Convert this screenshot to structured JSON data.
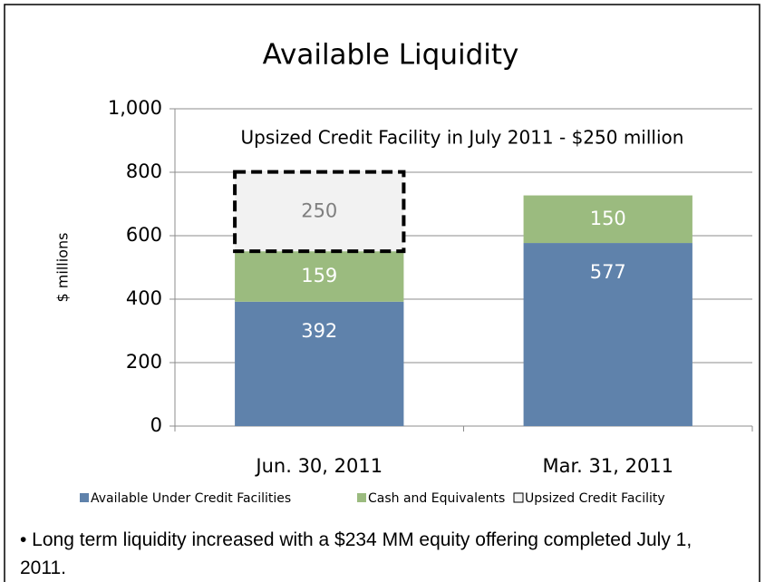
{
  "chart_data": {
    "type": "stacked_bar",
    "title": "Available Liquidity",
    "y_label": "$ millions",
    "annotation": "Upsized Credit Facility in July 2011 - $250 million",
    "categories": [
      "Jun. 30, 2011",
      "Mar. 31, 2011"
    ],
    "series": [
      {
        "name": "Available Under Credit Facilities",
        "color": "#5f82ab",
        "values": [
          392,
          577
        ]
      },
      {
        "name": "Cash and Equivalents",
        "color": "#9bbb7f",
        "values": [
          159,
          150
        ]
      },
      {
        "name": "Upsized Credit Facility",
        "color": "#f2f2f2",
        "values": [
          250,
          null
        ]
      }
    ],
    "ylim": [
      0,
      1000
    ],
    "yticks": [
      0,
      200,
      400,
      600,
      800,
      {
        "value": 1000,
        "label": "1,000"
      }
    ],
    "grid": true,
    "legend": "bottom"
  },
  "notes": [
    "• Long term liquidity increased with a $234 MM equity offering completed July 1, 2011."
  ]
}
